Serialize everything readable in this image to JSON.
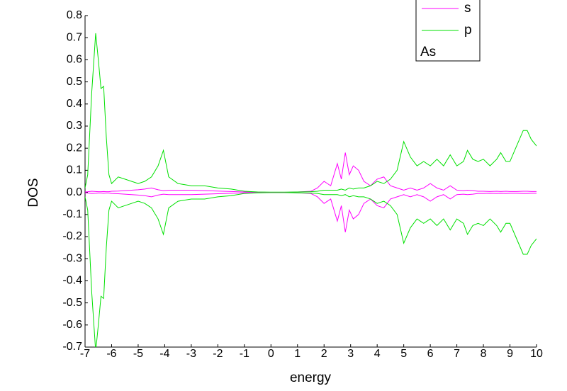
{
  "chart_data": {
    "type": "line",
    "xlabel": "energy",
    "ylabel": "DOS",
    "x": [
      -7,
      -6.9,
      -6.75,
      -6.6,
      -6.5,
      -6.4,
      -6.3,
      -6.2,
      -6.1,
      -6.0,
      -5.75,
      -5.5,
      -5.25,
      -5,
      -4.75,
      -4.5,
      -4.25,
      -4.05,
      -3.85,
      -3.5,
      -3,
      -2.5,
      -2,
      -1.5,
      -1,
      -0.5,
      0,
      0.5,
      1,
      1.5,
      1.75,
      2,
      2.25,
      2.5,
      2.65,
      2.8,
      2.95,
      3.1,
      3.3,
      3.5,
      3.75,
      4,
      4.25,
      4.5,
      4.75,
      5,
      5.25,
      5.5,
      5.75,
      6,
      6.25,
      6.5,
      6.75,
      7,
      7.25,
      7.4,
      7.6,
      7.8,
      8,
      8.25,
      8.5,
      8.65,
      8.85,
      9,
      9.25,
      9.5,
      9.65,
      9.8,
      10
    ],
    "series": [
      {
        "name": "s",
        "color": "#ff00ff",
        "values": [
          0.002,
          0.003,
          0.005,
          0.004,
          0.003,
          0.003,
          0.004,
          0.003,
          0.003,
          0.005,
          0.006,
          0.008,
          0.01,
          0.012,
          0.015,
          0.02,
          0.012,
          0.008,
          0.01,
          0.01,
          0.01,
          0.008,
          0.006,
          0.004,
          0.002,
          0.001,
          0,
          0,
          0.002,
          0.005,
          0.02,
          0.05,
          0.03,
          0.13,
          0.06,
          0.18,
          0.08,
          0.12,
          0.1,
          0.05,
          0.03,
          0.06,
          0.07,
          0.03,
          0.02,
          0.01,
          0.02,
          0.01,
          0.02,
          0.04,
          0.02,
          0.01,
          0.03,
          0.01,
          0.008,
          0.01,
          0.008,
          0.005,
          0.005,
          0.004,
          0.005,
          0.004,
          0.005,
          0.004,
          0.004,
          0.005,
          0.005,
          0.004,
          0.004
        ]
      },
      {
        "name": "p",
        "color": "#00e000",
        "values": [
          0.02,
          0.08,
          0.45,
          0.72,
          0.6,
          0.47,
          0.48,
          0.25,
          0.08,
          0.04,
          0.07,
          0.06,
          0.05,
          0.04,
          0.05,
          0.07,
          0.12,
          0.19,
          0.07,
          0.04,
          0.03,
          0.03,
          0.02,
          0.015,
          0.005,
          0.002,
          0.001,
          0.001,
          0.002,
          0.003,
          0.005,
          0.01,
          0.01,
          0.01,
          0.015,
          0.01,
          0.02,
          0.015,
          0.02,
          0.02,
          0.03,
          0.05,
          0.04,
          0.06,
          0.1,
          0.23,
          0.16,
          0.12,
          0.14,
          0.12,
          0.15,
          0.12,
          0.17,
          0.12,
          0.14,
          0.19,
          0.15,
          0.14,
          0.15,
          0.12,
          0.15,
          0.18,
          0.14,
          0.14,
          0.21,
          0.28,
          0.28,
          0.24,
          0.21
        ]
      },
      {
        "color": "#ff00ff",
        "values": [
          -0.002,
          -0.003,
          -0.005,
          -0.004,
          -0.003,
          -0.003,
          -0.004,
          -0.003,
          -0.003,
          -0.005,
          -0.006,
          -0.008,
          -0.01,
          -0.012,
          -0.015,
          -0.02,
          -0.012,
          -0.008,
          -0.01,
          -0.01,
          -0.01,
          -0.008,
          -0.006,
          -0.004,
          -0.002,
          -0.001,
          0,
          0,
          -0.002,
          -0.005,
          -0.02,
          -0.05,
          -0.03,
          -0.13,
          -0.06,
          -0.18,
          -0.08,
          -0.12,
          -0.1,
          -0.05,
          -0.03,
          -0.06,
          -0.07,
          -0.03,
          -0.02,
          -0.01,
          -0.02,
          -0.01,
          -0.02,
          -0.04,
          -0.02,
          -0.01,
          -0.03,
          -0.01,
          -0.008,
          -0.01,
          -0.008,
          -0.005,
          -0.005,
          -0.004,
          -0.005,
          -0.004,
          -0.005,
          -0.004,
          -0.004,
          -0.005,
          -0.005,
          -0.004,
          -0.004
        ]
      },
      {
        "color": "#00e000",
        "values": [
          -0.02,
          -0.08,
          -0.45,
          -0.72,
          -0.6,
          -0.47,
          -0.48,
          -0.25,
          -0.08,
          -0.04,
          -0.07,
          -0.06,
          -0.05,
          -0.04,
          -0.05,
          -0.07,
          -0.12,
          -0.19,
          -0.07,
          -0.04,
          -0.03,
          -0.03,
          -0.02,
          -0.015,
          -0.005,
          -0.002,
          -0.001,
          -0.001,
          -0.002,
          -0.003,
          -0.005,
          -0.01,
          -0.01,
          -0.01,
          -0.015,
          -0.01,
          -0.02,
          -0.015,
          -0.02,
          -0.02,
          -0.03,
          -0.05,
          -0.04,
          -0.06,
          -0.1,
          -0.23,
          -0.16,
          -0.12,
          -0.14,
          -0.12,
          -0.15,
          -0.12,
          -0.17,
          -0.12,
          -0.14,
          -0.19,
          -0.15,
          -0.14,
          -0.15,
          -0.12,
          -0.15,
          -0.18,
          -0.14,
          -0.14,
          -0.21,
          -0.28,
          -0.28,
          -0.24,
          -0.21
        ]
      }
    ],
    "legend_label": "As",
    "xlim": [
      -7,
      10
    ],
    "xticks": [
      -7,
      -6,
      -5,
      -4,
      -3,
      -2,
      -1,
      0,
      1,
      2,
      3,
      4,
      5,
      6,
      7,
      8,
      9,
      10
    ],
    "ylim": [
      -0.7,
      0.8
    ],
    "yticks": [
      -0.7,
      -0.6,
      -0.5,
      -0.4,
      -0.3,
      -0.2,
      -0.1,
      {
        "value": 0,
        "label": "0.0"
      },
      0.1,
      0.2,
      0.3,
      0.4,
      0.5,
      0.6,
      0.7,
      0.8
    ],
    "legend": "upper right",
    "grid": false
  }
}
